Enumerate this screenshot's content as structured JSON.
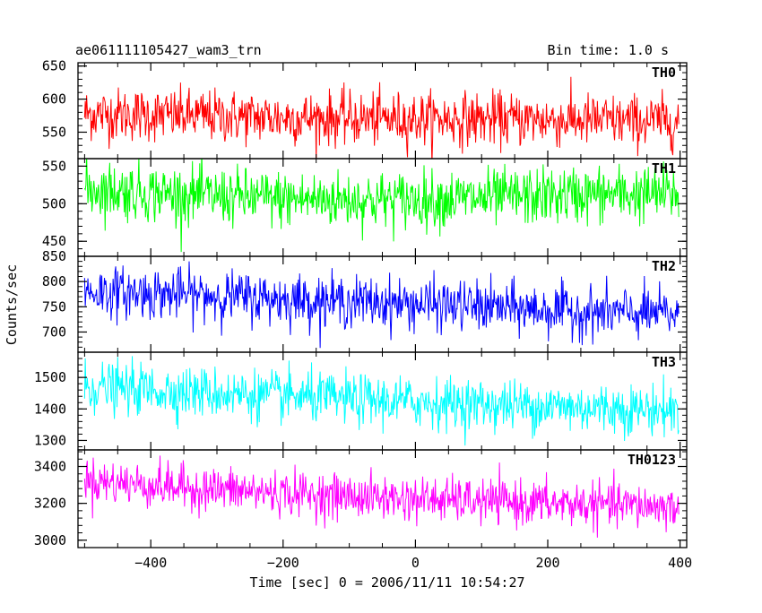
{
  "chart_data": {
    "type": "line",
    "title": "ae061111105427_wam3_trn",
    "subtitle": "Bin time: 1.0 s",
    "xlabel": "Time [sec] 0 = 2006/11/11 10:54:27",
    "ylabel": "Counts/sec",
    "xlim": [
      -510,
      410
    ],
    "x_ticks": [
      -400,
      -200,
      0,
      200,
      400
    ],
    "x_tick_labels": [
      "−400",
      "−200",
      "0",
      "200",
      "400"
    ],
    "x_range": [
      -500,
      398
    ],
    "grid": false,
    "legend": "none",
    "panels": [
      {
        "name": "TH0",
        "color": "#ff0000",
        "ylim": [
          510,
          655
        ],
        "ticks": [
          550,
          600,
          650
        ],
        "tick_labels": [
          "550",
          "600",
          "650"
        ],
        "x": [
          -500,
          -350,
          -200,
          -50,
          100,
          250,
          398
        ],
        "y": [
          578,
          575,
          572,
          570,
          570,
          568,
          566
        ],
        "noise_sd": 20
      },
      {
        "name": "TH1",
        "color": "#00ff00",
        "ylim": [
          430,
          560
        ],
        "ticks": [
          450,
          500,
          550
        ],
        "tick_labels": [
          "450",
          "500",
          "550"
        ],
        "x": [
          -500,
          -350,
          -200,
          -50,
          100,
          250,
          398
        ],
        "y": [
          520,
          512,
          506,
          505,
          507,
          512,
          513
        ],
        "noise_sd": 19
      },
      {
        "name": "TH2",
        "color": "#0000ff",
        "ylim": [
          660,
          850
        ],
        "ticks": [
          700,
          750,
          800,
          850
        ],
        "tick_labels": [
          "700",
          "750",
          "800",
          "850"
        ],
        "x": [
          -500,
          -350,
          -200,
          -50,
          100,
          250,
          398
        ],
        "y": [
          780,
          775,
          765,
          758,
          750,
          740,
          735
        ],
        "noise_sd": 25
      },
      {
        "name": "TH3",
        "color": "#00ffff",
        "ylim": [
          1270,
          1580
        ],
        "ticks": [
          1300,
          1400,
          1500
        ],
        "tick_labels": [
          "1300",
          "1400",
          "1500"
        ],
        "x": [
          -500,
          -350,
          -200,
          -50,
          100,
          250,
          398
        ],
        "y": [
          1470,
          1455,
          1440,
          1425,
          1415,
          1405,
          1395
        ],
        "noise_sd": 40
      },
      {
        "name": "TH0123",
        "color": "#ff00ff",
        "ylim": [
          2960,
          3490
        ],
        "ticks": [
          3000,
          3200,
          3400
        ],
        "tick_labels": [
          "3000",
          "3200",
          "3400"
        ],
        "x": [
          -500,
          -350,
          -200,
          -50,
          100,
          250,
          398
        ],
        "y": [
          3325,
          3285,
          3255,
          3230,
          3210,
          3195,
          3180
        ],
        "noise_sd": 60
      }
    ]
  }
}
